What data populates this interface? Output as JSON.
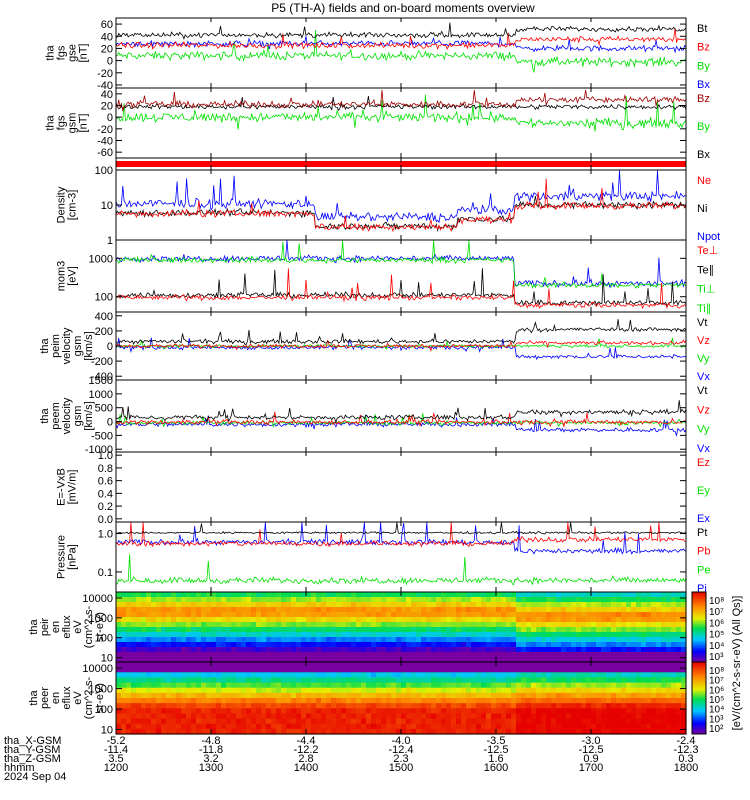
{
  "title": "P5 (TH-A) fields and on-board moments overview",
  "colors": {
    "black": "#000000",
    "red": "#ff0000",
    "green": "#00e000",
    "blue": "#0000ff",
    "darkred": "#a00000",
    "blue2": "#0010ff"
  },
  "panels": [
    {
      "ylabel": [
        "tha",
        "fgs",
        "gse",
        "[nT]"
      ],
      "ticks": [
        "60",
        "40",
        "20",
        "0",
        "-20",
        "-40"
      ],
      "legend": [
        {
          "text": "Bt",
          "color": "#000000"
        },
        {
          "text": "Bz",
          "color": "#ff0000"
        },
        {
          "text": "By",
          "color": "#00e000"
        },
        {
          "text": "Bx",
          "color": "#0000ff"
        }
      ]
    },
    {
      "ylabel": [
        "tha",
        "fgs",
        "gsm",
        "[nT]"
      ],
      "ticks": [
        "40",
        "20",
        "0",
        "-20",
        "-40",
        "-60"
      ],
      "legend": [
        {
          "text": "Bz",
          "color": "#a00000"
        },
        {
          "text": "By",
          "color": "#00e000"
        },
        {
          "text": "Bx",
          "color": "#000000"
        }
      ]
    },
    {
      "ylabel": [],
      "ticks": [],
      "legend": []
    },
    {
      "ylabel": [
        "Density",
        "[cm-3]"
      ],
      "ticks": [
        "100",
        "10",
        "1"
      ],
      "legend": [
        {
          "text": "Ne",
          "color": "#ff0000"
        },
        {
          "text": "Ni",
          "color": "#000000"
        },
        {
          "text": "Npot",
          "color": "#0000ff"
        }
      ]
    },
    {
      "ylabel": [
        "mom3",
        "[eV]"
      ],
      "ticks": [
        "1000",
        "100"
      ],
      "legend": [
        {
          "text": "Te⊥",
          "color": "#ff0000"
        },
        {
          "text": "Te∥",
          "color": "#000000"
        },
        {
          "text": "Ti⊥",
          "color": "#00e000"
        },
        {
          "text": "Ti∥",
          "color": "#00e000"
        }
      ]
    },
    {
      "ylabel": [
        "tha",
        "peim",
        "velocity",
        "gsm",
        "[km/s]"
      ],
      "ticks": [
        "400",
        "200",
        "0",
        "-200",
        "-400"
      ],
      "legend": [
        {
          "text": "Vt",
          "color": "#000000"
        },
        {
          "text": "Vz",
          "color": "#ff0000"
        },
        {
          "text": "Vy",
          "color": "#00e000"
        },
        {
          "text": "Vx",
          "color": "#0000ff"
        }
      ]
    },
    {
      "ylabel": [
        "tha",
        "peem",
        "velocity",
        "gsm",
        "[km/s]"
      ],
      "ticks": [
        "1500",
        "1000",
        "500",
        "0",
        "-500",
        "-1000"
      ],
      "legend": [
        {
          "text": "Vt",
          "color": "#000000"
        },
        {
          "text": "Vz",
          "color": "#ff0000"
        },
        {
          "text": "Vy",
          "color": "#00e000"
        },
        {
          "text": "Vx",
          "color": "#0000ff"
        }
      ]
    },
    {
      "ylabel": [
        "E=-VxB",
        "[mV/m]"
      ],
      "ticks": [
        "1.0",
        "0.8",
        "0.6",
        "0.4",
        "0.2",
        "0.0"
      ],
      "legend": [
        {
          "text": "Ez",
          "color": "#ff0000"
        },
        {
          "text": "Ey",
          "color": "#00e000"
        },
        {
          "text": "Ex",
          "color": "#0000ff"
        }
      ]
    },
    {
      "ylabel": [
        "Pressure",
        "[nPa]"
      ],
      "ticks": [
        "1.0",
        "0.1"
      ],
      "legend": [
        {
          "text": "Pt",
          "color": "#000000"
        },
        {
          "text": "Pb",
          "color": "#ff0000"
        },
        {
          "text": "Pe",
          "color": "#00e000"
        },
        {
          "text": "Pi",
          "color": "#0000ff"
        }
      ]
    },
    {
      "ylabel": [
        "tha",
        "peir",
        "en",
        "eflux",
        "eV",
        "(cm^2-s-",
        "sr-eV)"
      ],
      "ticks": [
        "10000",
        "1000",
        "100",
        "10"
      ],
      "legend": []
    },
    {
      "ylabel": [
        "tha",
        "peer",
        "en",
        "eflux",
        "eV",
        "(cm^2-s-",
        "sr-eV)"
      ],
      "ticks": [
        "10000",
        "1000",
        "100",
        "10"
      ],
      "legend": []
    }
  ],
  "colorbar": {
    "label": "[eV/(cm^2-s-sr-eV) (All Qs)]",
    "ticks_top": [
      "10⁸",
      "10⁷",
      "10⁶",
      "10⁵",
      "10⁴",
      "10³"
    ],
    "ticks_bottom": [
      "10⁸",
      "10⁷",
      "10⁶",
      "10⁵",
      "10⁴",
      "10³",
      "10²"
    ]
  },
  "xaxis": {
    "row_labels": [
      "tha_X-GSM",
      "tha_Y-GSM",
      "tha_Z-GSM",
      "hhmm",
      "2024 Sep 04"
    ],
    "columns": [
      [
        "-5.2",
        "-11.4",
        "3.5",
        "1200"
      ],
      [
        "-4.8",
        "-11.8",
        "3.2",
        "1300"
      ],
      [
        "-4.4",
        "-12.2",
        "2.8",
        "1400"
      ],
      [
        "-4.0",
        "-12.4",
        "2.3",
        "1500"
      ],
      [
        "-3.5",
        "-12.5",
        "1.6",
        "1600"
      ],
      [
        "-3.0",
        "-12.5",
        "0.9",
        "1700"
      ],
      [
        "-2.4",
        "-12.3",
        "0.3",
        "1800"
      ]
    ]
  },
  "chart_data": {
    "type": "line",
    "title": "P5 (TH-A) fields and on-board moments overview",
    "x_time_ticks": [
      "1200",
      "1300",
      "1400",
      "1500",
      "1600",
      "1700",
      "1800"
    ],
    "panels": [
      {
        "ylabel": "tha fgs gse [nT]",
        "ylim": [
          -45,
          70
        ],
        "series": [
          {
            "name": "Bt",
            "color": "#000000",
            "approx_level": 45
          },
          {
            "name": "Bz",
            "color": "#ff0000",
            "approx_level": 25
          },
          {
            "name": "By",
            "color": "#00e000",
            "approx_level": 5
          },
          {
            "name": "Bx",
            "color": "#0000ff",
            "approx_level": 25
          }
        ]
      },
      {
        "ylabel": "tha fgs gsm [nT]",
        "ylim": [
          -70,
          50
        ],
        "series": [
          {
            "name": "Bz",
            "color": "#a00000",
            "approx_level": 25
          },
          {
            "name": "By",
            "color": "#00e000",
            "approx_level": 0
          },
          {
            "name": "Bx",
            "color": "#000000",
            "approx_level": 20
          }
        ]
      },
      {
        "ylabel": "Density [cm-3]",
        "ylim": [
          1,
          100
        ],
        "scale": "log",
        "series": [
          {
            "name": "Ne",
            "color": "#ff0000",
            "approx_level": 5
          },
          {
            "name": "Ni",
            "color": "#000000",
            "approx_level": 5
          },
          {
            "name": "Npot",
            "color": "#0000ff",
            "approx_level": 10
          }
        ]
      },
      {
        "ylabel": "mom3 [eV]",
        "ylim": [
          40,
          3000
        ],
        "scale": "log",
        "series": [
          {
            "name": "Te⊥",
            "color": "#ff0000",
            "approx_level": 100
          },
          {
            "name": "Te∥",
            "color": "#000000",
            "approx_level": 100
          },
          {
            "name": "Ti⊥",
            "color": "#00e000",
            "approx_level": 800
          },
          {
            "name": "Ti∥",
            "color": "#00e000",
            "approx_level": 800
          }
        ]
      },
      {
        "ylabel": "tha peim velocity gsm [km/s]",
        "ylim": [
          -450,
          450
        ],
        "series": [
          {
            "name": "Vt",
            "color": "#000000",
            "approx_level": 60
          },
          {
            "name": "Vz",
            "color": "#ff0000",
            "approx_level": 0
          },
          {
            "name": "Vy",
            "color": "#00e000",
            "approx_level": 0
          },
          {
            "name": "Vx",
            "color": "#0000ff",
            "approx_level": 0
          }
        ]
      },
      {
        "ylabel": "tha peem velocity gsm [km/s]",
        "ylim": [
          -1100,
          1500
        ],
        "series": [
          {
            "name": "Vt",
            "color": "#000000",
            "approx_level": 100
          },
          {
            "name": "Vz",
            "color": "#ff0000",
            "approx_level": 0
          },
          {
            "name": "Vy",
            "color": "#00e000",
            "approx_level": 0
          },
          {
            "name": "Vx",
            "color": "#0000ff",
            "approx_level": 0
          }
        ]
      },
      {
        "ylabel": "E=-VxB [mV/m]",
        "ylim": [
          -0.05,
          1.05
        ],
        "series": []
      },
      {
        "ylabel": "Pressure [nPa]",
        "ylim": [
          0.03,
          2
        ],
        "scale": "log",
        "series": [
          {
            "name": "Pt",
            "color": "#000000",
            "approx_level": 1.0
          },
          {
            "name": "Pb",
            "color": "#ff0000",
            "approx_level": 0.6
          },
          {
            "name": "Pe",
            "color": "#00e000",
            "approx_level": 0.06
          },
          {
            "name": "Pi",
            "color": "#0000ff",
            "approx_level": 0.5
          }
        ]
      }
    ]
  }
}
